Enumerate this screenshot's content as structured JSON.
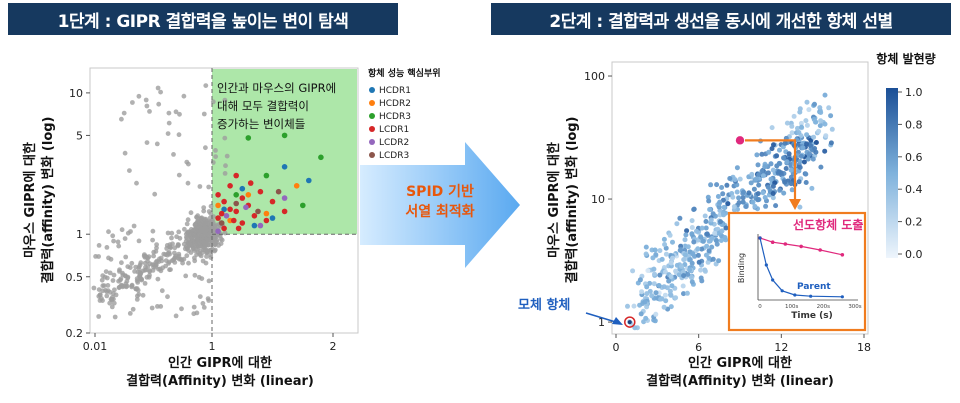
{
  "panels": {
    "left_title": "1단계 : GIPR 결합력을 높이는 변이 탐색",
    "right_title": "2단계 : 결합력과 생선을 동시에 개선한 항체 선별"
  },
  "arrow_label": {
    "line1": "SPID 기반",
    "line2": "서열 최적화"
  },
  "colors": {
    "banner": "#16395f",
    "highlight_green": "#7ed37e",
    "arrow_blue": "#5aa9f0",
    "callout_orange": "#f07c1f",
    "lead_magenta": "#e0297d",
    "parent_blue": "#1f5fbf"
  },
  "chart_data": [
    {
      "type": "scatter",
      "xlabel_line1": "인간 GIPR에 대한",
      "xlabel_line2": "결합력(Affinity) 변화 (linear)",
      "ylabel_line1": "마우스 GIPR에 대한",
      "ylabel_line2": "결합력(affinity) 변화 (log)",
      "x_ticks": [
        "0.01",
        "1",
        "2"
      ],
      "y_ticks": [
        "10",
        "5",
        "1",
        "0.5",
        "0.2"
      ],
      "y_scale": "log",
      "ylim": [
        0.2,
        15
      ],
      "highlight_region": {
        "x_min": 1,
        "y_min": 1
      },
      "annotation": [
        "인간과 마우스의 GIPR에",
        "대해 모두 결합력이",
        "증가하는 변이체들"
      ],
      "legend_title": "항체 성능 핵심부위",
      "legend_position": "right",
      "series": [
        {
          "name": "HCDR1",
          "color": "#1f77b4",
          "points": [
            [
              1.1,
              1.5
            ],
            [
              1.25,
              2.1
            ],
            [
              1.5,
              1.3
            ],
            [
              1.8,
              2.4
            ],
            [
              1.35,
              1.15
            ],
            [
              1.6,
              3.0
            ]
          ]
        },
        {
          "name": "HCDR2",
          "color": "#ff7f0e",
          "points": [
            [
              1.05,
              1.6
            ],
            [
              1.3,
              1.9
            ],
            [
              1.7,
              2.2
            ],
            [
              1.45,
              1.4
            ],
            [
              1.15,
              1.25
            ]
          ]
        },
        {
          "name": "HCDR3",
          "color": "#2ca02c",
          "points": [
            [
              1.3,
              4.8
            ],
            [
              1.6,
              5.0
            ],
            [
              1.9,
              3.5
            ],
            [
              1.45,
              2.6
            ],
            [
              1.2,
              1.9
            ],
            [
              1.75,
              1.6
            ]
          ]
        },
        {
          "name": "LCDR1",
          "color": "#d62728",
          "points": [
            [
              1.05,
              1.3
            ],
            [
              1.1,
              1.7
            ],
            [
              1.15,
              2.2
            ],
            [
              1.2,
              1.45
            ],
            [
              1.25,
              1.2
            ],
            [
              1.3,
              1.6
            ],
            [
              1.4,
              2.0
            ],
            [
              1.1,
              1.1
            ],
            [
              1.2,
              2.6
            ],
            [
              1.35,
              1.35
            ],
            [
              1.05,
              1.9
            ],
            [
              1.5,
              1.7
            ],
            [
              1.15,
              1.5
            ],
            [
              1.25,
              1.8
            ],
            [
              1.45,
              1.25
            ],
            [
              1.08,
              1.4
            ],
            [
              1.22,
              1.1
            ],
            [
              1.32,
              2.3
            ],
            [
              1.6,
              1.45
            ],
            [
              1.18,
              1.25
            ]
          ]
        },
        {
          "name": "LCDR2",
          "color": "#9467bd",
          "points": [
            [
              1.12,
              1.35
            ],
            [
              1.28,
              1.55
            ],
            [
              1.6,
              1.8
            ],
            [
              1.4,
              1.15
            ],
            [
              1.05,
              1.05
            ]
          ]
        },
        {
          "name": "LCDR3",
          "color": "#8c564b",
          "points": [
            [
              1.2,
              1.65
            ],
            [
              1.55,
              2.0
            ],
            [
              1.08,
              1.2
            ],
            [
              1.38,
              1.45
            ]
          ]
        }
      ],
      "background_series": {
        "name": "",
        "color": "#9e9e9e",
        "count": 700
      }
    },
    {
      "type": "scatter",
      "xlabel_line1": "인간 GIPR에 대한",
      "xlabel_line2": "결합력(Affinity) 변화 (linear)",
      "ylabel_line1": "마우스 GIPR에 대한",
      "ylabel_line2": "결합력(affinity) 변화 (log)",
      "x_ticks": [
        "0",
        "6",
        "12",
        "18"
      ],
      "xlim": [
        -0.5,
        18.5
      ],
      "y_ticks": [
        "100",
        "10",
        "1"
      ],
      "y_scale": "log",
      "ylim": [
        0.8,
        130
      ],
      "colorbar_title": "항체 발현량",
      "colorbar_ticks": [
        "1.0",
        "0.8",
        "0.6",
        "0.4",
        "0.2",
        "0.0"
      ],
      "parent_label": "모체 항체",
      "parent_point": [
        1,
        1
      ],
      "lead_point": [
        9,
        30
      ],
      "point_count": 600,
      "inset": {
        "title": "선도항체 도출",
        "ylabel": "Binding",
        "xlabel": "Time (s)",
        "x_ticks": [
          "0",
          "100s",
          "200s",
          "300s"
        ],
        "curve_label": "Parent",
        "lead_points": [
          [
            0,
            1.0
          ],
          [
            40,
            0.93
          ],
          [
            80,
            0.9
          ],
          [
            130,
            0.86
          ],
          [
            190,
            0.8
          ],
          [
            260,
            0.72
          ]
        ],
        "parent_points": [
          [
            0,
            1.0
          ],
          [
            20,
            0.55
          ],
          [
            40,
            0.3
          ],
          [
            70,
            0.12
          ],
          [
            110,
            0.05
          ],
          [
            160,
            0.03
          ],
          [
            260,
            0.02
          ]
        ]
      }
    }
  ]
}
